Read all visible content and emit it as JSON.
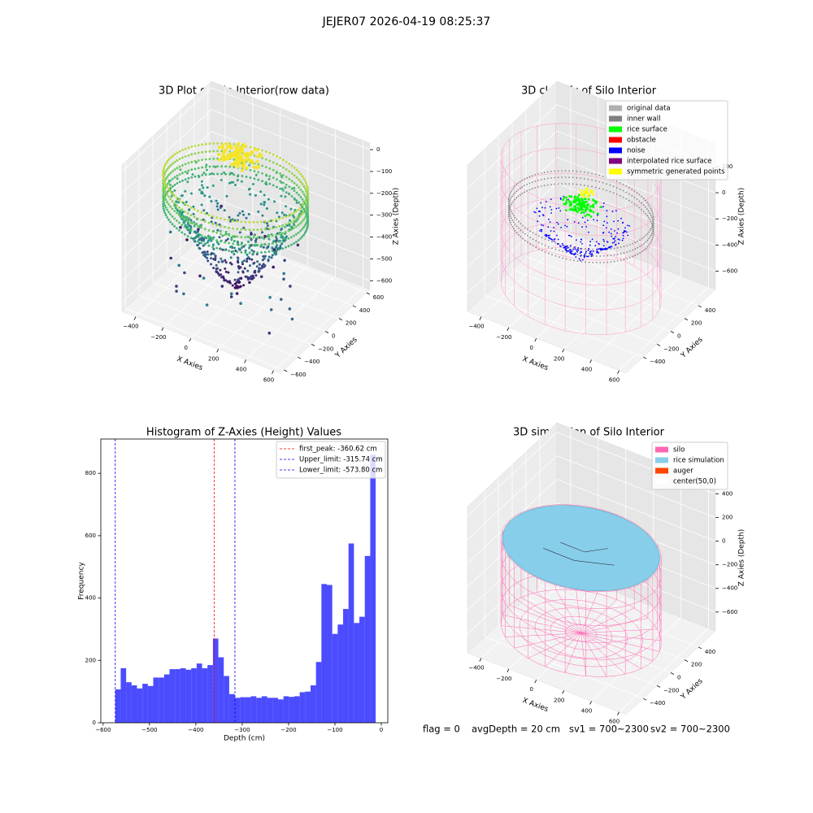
{
  "title": "JEJER07 2026-04-19 08:25:37",
  "chart_data": [
    {
      "type": "scatter3d",
      "title": "3D Plot of Silo Interior(row data)",
      "xlabel": "X Axies",
      "ylabel": "Y Axies",
      "zlabel": "Z Axies (Depth)",
      "xlim": [
        -500,
        650
      ],
      "ylim": [
        -650,
        650
      ],
      "zlim": [
        -640,
        30
      ],
      "xticks": [
        {
          "value": -400,
          "label": "−400"
        },
        {
          "value": -200,
          "label": "−200"
        },
        0,
        200,
        400,
        600
      ],
      "yticks": [
        {
          "value": -600,
          "label": "−600"
        },
        {
          "value": -400,
          "label": "−400"
        },
        {
          "value": -200,
          "label": "−200"
        },
        0,
        200,
        400,
        600
      ],
      "zticks": [
        0,
        {
          "value": -100,
          "label": "−100"
        },
        {
          "value": -200,
          "label": "−200"
        },
        {
          "value": -300,
          "label": "−300"
        },
        {
          "value": -400,
          "label": "−400"
        },
        {
          "value": -500,
          "label": "−500"
        },
        {
          "value": -600,
          "label": "−600"
        }
      ],
      "grid": true
    },
    {
      "type": "scatter3d",
      "title": "3D classify of Silo Interior",
      "xlabel": "X Axies",
      "ylabel": "Y Axies",
      "zlabel": "Z Axies (Depth)",
      "xlim": [
        -500,
        650
      ],
      "ylim": [
        -650,
        650
      ],
      "zlim": [
        -740,
        380
      ],
      "xticks": [
        {
          "value": -400,
          "label": "−400"
        },
        {
          "value": -200,
          "label": "−200"
        },
        0,
        200,
        400,
        600
      ],
      "yticks": [
        {
          "value": -400,
          "label": "−400"
        },
        {
          "value": -200,
          "label": "−200"
        },
        0,
        200,
        400
      ],
      "zticks": [
        {
          "value": -600,
          "label": "−600"
        },
        {
          "value": -400,
          "label": "−400"
        },
        {
          "value": -200,
          "label": "−200"
        },
        0,
        200
      ],
      "grid": true,
      "legend": "upper right",
      "legend_items": [
        {
          "name": "original data",
          "color": "#b0b0b0"
        },
        {
          "name": "inner wall",
          "color": "#808080"
        },
        {
          "name": "rice surface",
          "color": "#00ff00"
        },
        {
          "name": "obstacle",
          "color": "#ff0000"
        },
        {
          "name": "noise",
          "color": "#0000ff"
        },
        {
          "name": "interpolated rice surface",
          "color": "#800080"
        },
        {
          "name": "symmetric generated points",
          "color": "#ffff00"
        }
      ]
    },
    {
      "type": "histogram",
      "title": "Histogram of Z-Axies (Height) Values",
      "xlabel": "Depth (cm)",
      "ylabel": "Frequency",
      "bins": [
        -573.8,
        -562.1,
        -550.4,
        -538.7,
        -527.0,
        -515.3,
        -503.6,
        -491.9,
        -480.2,
        -468.5,
        -456.8,
        -445.1,
        -433.4,
        -421.7,
        -410.0,
        -398.3,
        -386.6,
        -374.9,
        -363.2,
        -351.5,
        -339.8,
        -328.1,
        -316.4,
        -304.7,
        -293.0,
        -281.3,
        -269.6,
        -257.9,
        -246.2,
        -234.5,
        -222.8,
        -211.1,
        -199.4,
        -187.7,
        -176.0,
        -164.3,
        -152.6,
        -140.9,
        -129.2,
        -117.5,
        -105.8,
        -94.1,
        -82.4,
        -70.7,
        -59.0,
        -47.3,
        -35.6,
        -23.9,
        -12.2
      ],
      "counts": [
        107,
        175,
        130,
        120,
        110,
        125,
        118,
        145,
        145,
        155,
        172,
        172,
        175,
        170,
        175,
        190,
        175,
        185,
        270,
        210,
        150,
        92,
        80,
        82,
        82,
        85,
        80,
        85,
        80,
        80,
        75,
        85,
        83,
        85,
        98,
        100,
        120,
        195,
        445,
        442,
        285,
        315,
        365,
        575,
        320,
        340,
        535,
        860
      ],
      "color": "#0000ff",
      "alpha": 0.7,
      "xlim": [
        -605,
        14
      ],
      "ylim": [
        0,
        910
      ],
      "xticks": [
        {
          "value": -600,
          "label": "−600"
        },
        {
          "value": -500,
          "label": "−500"
        },
        {
          "value": -400,
          "label": "−400"
        },
        {
          "value": -300,
          "label": "−300"
        },
        {
          "value": -200,
          "label": "−200"
        },
        {
          "value": -100,
          "label": "−100"
        },
        0
      ],
      "yticks": [
        0,
        200,
        400,
        600,
        800
      ],
      "legend": "upper right",
      "lines": [
        {
          "name": "first_peak: -360.62 cm",
          "value": -360.62,
          "color": "#ff0000"
        },
        {
          "name": "Upper_limit: -315.74 cm",
          "value": -315.74,
          "color": "#0000ff"
        },
        {
          "name": "Lower_limit: -573.80 cm",
          "value": -573.8,
          "color": "#0000ff"
        }
      ]
    },
    {
      "type": "scatter3d",
      "title": "3D simulation of Silo Interior",
      "xlabel": "X Axies",
      "ylabel": "Y Axies",
      "zlabel": "Z Axies (Depth)",
      "xlim": [
        -500,
        650
      ],
      "ylim": [
        -650,
        650
      ],
      "zlim": [
        -760,
        480
      ],
      "xticks": [
        {
          "value": -400,
          "label": "−400"
        },
        {
          "value": -200,
          "label": "−200"
        },
        0,
        200,
        400,
        600
      ],
      "yticks": [
        {
          "value": -400,
          "label": "−400"
        },
        {
          "value": -200,
          "label": "−200"
        },
        0,
        200,
        400
      ],
      "zticks": [
        {
          "value": -600,
          "label": "−600"
        },
        {
          "value": -400,
          "label": "−400"
        },
        {
          "value": -200,
          "label": "−200"
        },
        0,
        200,
        400
      ],
      "grid": true,
      "legend": "upper right",
      "legend_items": [
        {
          "name": "silo",
          "color": "#ff69b4"
        },
        {
          "name": "rice simulation",
          "color": "#87ceeb"
        },
        {
          "name": "auger",
          "color": "#ff4500"
        },
        {
          "name": "center(50,0)",
          "color": "#ffffff"
        }
      ]
    }
  ],
  "footer": [
    "flag = 0",
    "avgDepth = 20 cm",
    "sv1 = 700~2300",
    "sv2 = 700~2300"
  ]
}
